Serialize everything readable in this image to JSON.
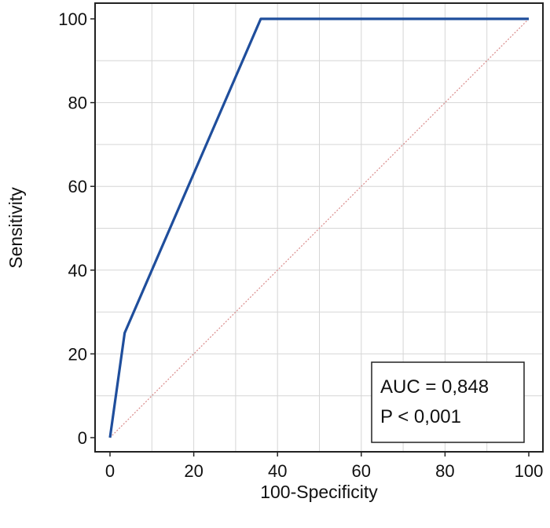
{
  "chart_data": {
    "type": "line",
    "xlabel": "100-Specificity",
    "ylabel": "Sensitivity",
    "xlim": [
      0,
      100
    ],
    "ylim": [
      0,
      100
    ],
    "xticks": [
      "0",
      "20",
      "40",
      "60",
      "80",
      "100"
    ],
    "yticks": [
      "0",
      "20",
      "40",
      "60",
      "80",
      "100"
    ],
    "grid": true,
    "series": [
      {
        "x": [
          0,
          3.5,
          36,
          100
        ],
        "y": [
          0,
          25,
          100,
          100
        ],
        "color": "#1f4e9c"
      }
    ],
    "reference_line": {
      "x": [
        0,
        100
      ],
      "y": [
        0,
        100
      ],
      "color": "#d98a8a"
    },
    "annotations": [
      "AUC = 0,848",
      "P < 0,001"
    ]
  }
}
